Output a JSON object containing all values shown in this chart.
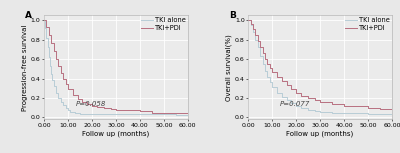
{
  "panel_A": {
    "label": "A",
    "ylabel": "Progression-free survival",
    "xlabel": "Follow up (months)",
    "pvalue": "P=0.058",
    "xlim": [
      0,
      60
    ],
    "ylim": [
      -0.02,
      1.05
    ],
    "xticks": [
      0,
      10,
      20,
      30,
      40,
      50,
      60
    ],
    "xtick_labels": [
      "0.00",
      "10.00",
      "20.00",
      "30.00",
      "40.00",
      "50.00",
      "60.00"
    ],
    "yticks": [
      0.0,
      0.2,
      0.4,
      0.6,
      0.8,
      1.0
    ],
    "tki_alone": {
      "times": [
        0,
        0.5,
        1,
        1.5,
        2,
        2.5,
        3,
        3.5,
        4,
        5,
        6,
        7,
        8,
        9,
        10,
        11,
        13,
        15,
        17,
        20,
        25,
        30,
        35,
        55,
        60
      ],
      "surv": [
        1.0,
        0.92,
        0.82,
        0.72,
        0.62,
        0.53,
        0.45,
        0.38,
        0.32,
        0.25,
        0.2,
        0.16,
        0.13,
        0.1,
        0.08,
        0.06,
        0.05,
        0.04,
        0.03,
        0.03,
        0.03,
        0.03,
        0.03,
        0.02,
        0.02
      ],
      "color": "#b8cdd6",
      "label": "TKI alone"
    },
    "tki_pdi": {
      "times": [
        0,
        1,
        2,
        3,
        4,
        5,
        6,
        7,
        8,
        9,
        10,
        12,
        14,
        16,
        18,
        20,
        22,
        25,
        28,
        30,
        35,
        40,
        45,
        55,
        60
      ],
      "surv": [
        1.0,
        0.93,
        0.85,
        0.77,
        0.68,
        0.6,
        0.53,
        0.46,
        0.4,
        0.34,
        0.29,
        0.23,
        0.19,
        0.16,
        0.14,
        0.12,
        0.11,
        0.1,
        0.09,
        0.08,
        0.08,
        0.07,
        0.05,
        0.05,
        0.05
      ],
      "color": "#b87080",
      "label": "TKI+PDI"
    }
  },
  "panel_B": {
    "label": "B",
    "ylabel": "Overall survival(%)",
    "xlabel": "Follow up (months)",
    "pvalue": "P=0.077",
    "xlim": [
      0,
      60
    ],
    "ylim": [
      -0.02,
      1.05
    ],
    "xticks": [
      0,
      10,
      20,
      30,
      40,
      50,
      60
    ],
    "xtick_labels": [
      "0.00",
      "10.00",
      "20.00",
      "30.00",
      "40.00",
      "50.00",
      "60.00"
    ],
    "yticks": [
      0.0,
      0.2,
      0.4,
      0.6,
      0.8,
      1.0
    ],
    "tki_alone": {
      "times": [
        0,
        1,
        2,
        3,
        4,
        5,
        6,
        7,
        8,
        9,
        10,
        12,
        14,
        16,
        18,
        20,
        22,
        25,
        28,
        30,
        35,
        50,
        55,
        60
      ],
      "surv": [
        1.0,
        0.95,
        0.88,
        0.8,
        0.72,
        0.63,
        0.55,
        0.48,
        0.42,
        0.36,
        0.31,
        0.25,
        0.21,
        0.18,
        0.15,
        0.12,
        0.1,
        0.08,
        0.07,
        0.06,
        0.05,
        0.04,
        0.04,
        0.04
      ],
      "color": "#b8cdd6",
      "label": "TKI alone"
    },
    "tki_pdi": {
      "times": [
        0,
        1,
        2,
        3,
        4,
        5,
        6,
        7,
        8,
        9,
        10,
        12,
        14,
        16,
        18,
        20,
        22,
        25,
        28,
        30,
        35,
        40,
        45,
        50,
        55,
        60
      ],
      "surv": [
        1.0,
        0.96,
        0.91,
        0.85,
        0.79,
        0.72,
        0.66,
        0.6,
        0.55,
        0.51,
        0.47,
        0.42,
        0.37,
        0.33,
        0.29,
        0.25,
        0.22,
        0.2,
        0.18,
        0.16,
        0.14,
        0.12,
        0.12,
        0.1,
        0.09,
        0.09
      ],
      "color": "#b87080",
      "label": "TKI+PDI"
    }
  },
  "fig_bg": "#e8e8e8",
  "plot_bg": "#ebebeb",
  "grid_color": "#ffffff",
  "tick_fontsize": 4.5,
  "label_fontsize": 5.0,
  "legend_fontsize": 4.8,
  "pvalue_fontsize": 5.0
}
